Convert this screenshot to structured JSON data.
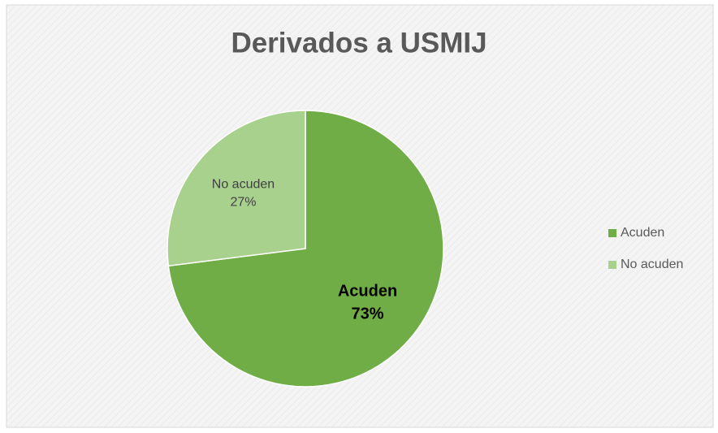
{
  "chart_data": {
    "type": "pie",
    "title": "Derivados a USMIJ",
    "categories": [
      "Acuden",
      "No acuden"
    ],
    "values": [
      73,
      27
    ],
    "value_labels": [
      "73%",
      "27%"
    ],
    "colors": [
      "#70ad47",
      "#a9d18e"
    ],
    "legend": "right"
  }
}
